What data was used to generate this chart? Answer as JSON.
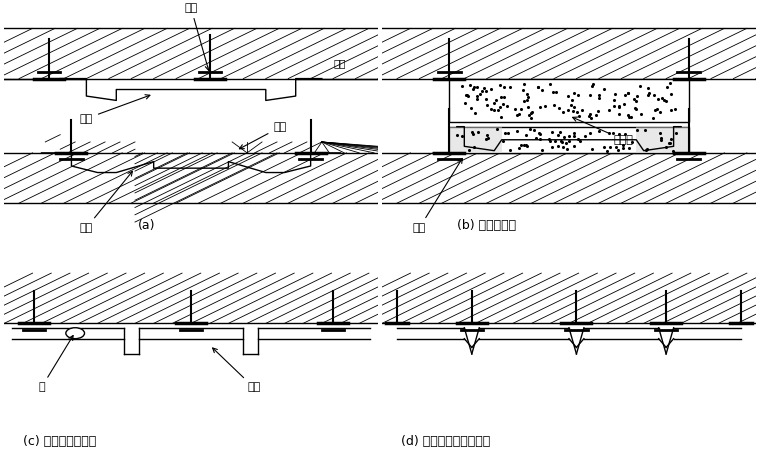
{
  "bg_color": "#ffffff",
  "line_color": "#000000",
  "hatch_color": "#000000",
  "label_a": "(a)",
  "label_b": "(b) 使用隔热材",
  "label_c": "(c) 管内可能清扫者",
  "label_d": "(d) 管并列呈面状导水者",
  "text_maosuan": "锚栓",
  "text_chenduo": "衬砌",
  "text_guancai": "管材",
  "text_bancai": "板材",
  "text_jiaju": "夹具",
  "text_geduan": "隔热材",
  "text_guan": "管",
  "text_chuan": "槫材"
}
